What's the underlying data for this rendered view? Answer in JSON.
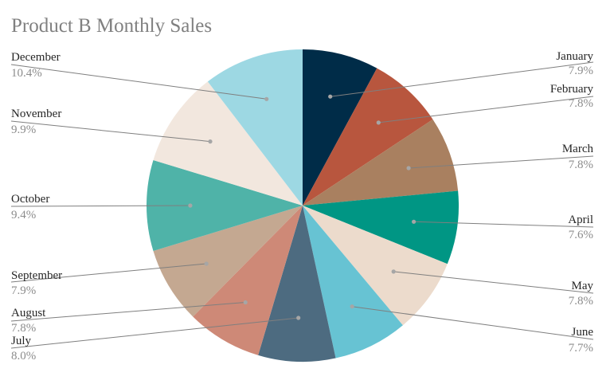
{
  "chart_data": {
    "type": "pie",
    "title": "Product B Monthly Sales",
    "start_angle_deg": 0,
    "direction": "clockwise",
    "legend": "none",
    "slices": [
      {
        "label": "January",
        "percent_label": "7.9%",
        "value": 7.9,
        "color": "#002c48"
      },
      {
        "label": "February",
        "percent_label": "7.8%",
        "value": 7.8,
        "color": "#b8563e"
      },
      {
        "label": "March",
        "percent_label": "7.8%",
        "value": 7.8,
        "color": "#a98060"
      },
      {
        "label": "April",
        "percent_label": "7.6%",
        "value": 7.6,
        "color": "#009684"
      },
      {
        "label": "May",
        "percent_label": "7.8%",
        "value": 7.8,
        "color": "#ecdbcc"
      },
      {
        "label": "June",
        "percent_label": "7.7%",
        "value": 7.7,
        "color": "#67c3d3"
      },
      {
        "label": "July",
        "percent_label": "8.0%",
        "value": 8.0,
        "color": "#4d6b80"
      },
      {
        "label": "August",
        "percent_label": "7.8%",
        "value": 7.8,
        "color": "#ce8977"
      },
      {
        "label": "September",
        "percent_label": "7.9%",
        "value": 7.9,
        "color": "#c4a891"
      },
      {
        "label": "October",
        "percent_label": "9.4%",
        "value": 9.4,
        "color": "#4fb3a8"
      },
      {
        "label": "November",
        "percent_label": "9.9%",
        "value": 9.9,
        "color": "#f2e7de"
      },
      {
        "label": "December",
        "percent_label": "10.4%",
        "value": 10.4,
        "color": "#9dd8e3"
      }
    ]
  }
}
